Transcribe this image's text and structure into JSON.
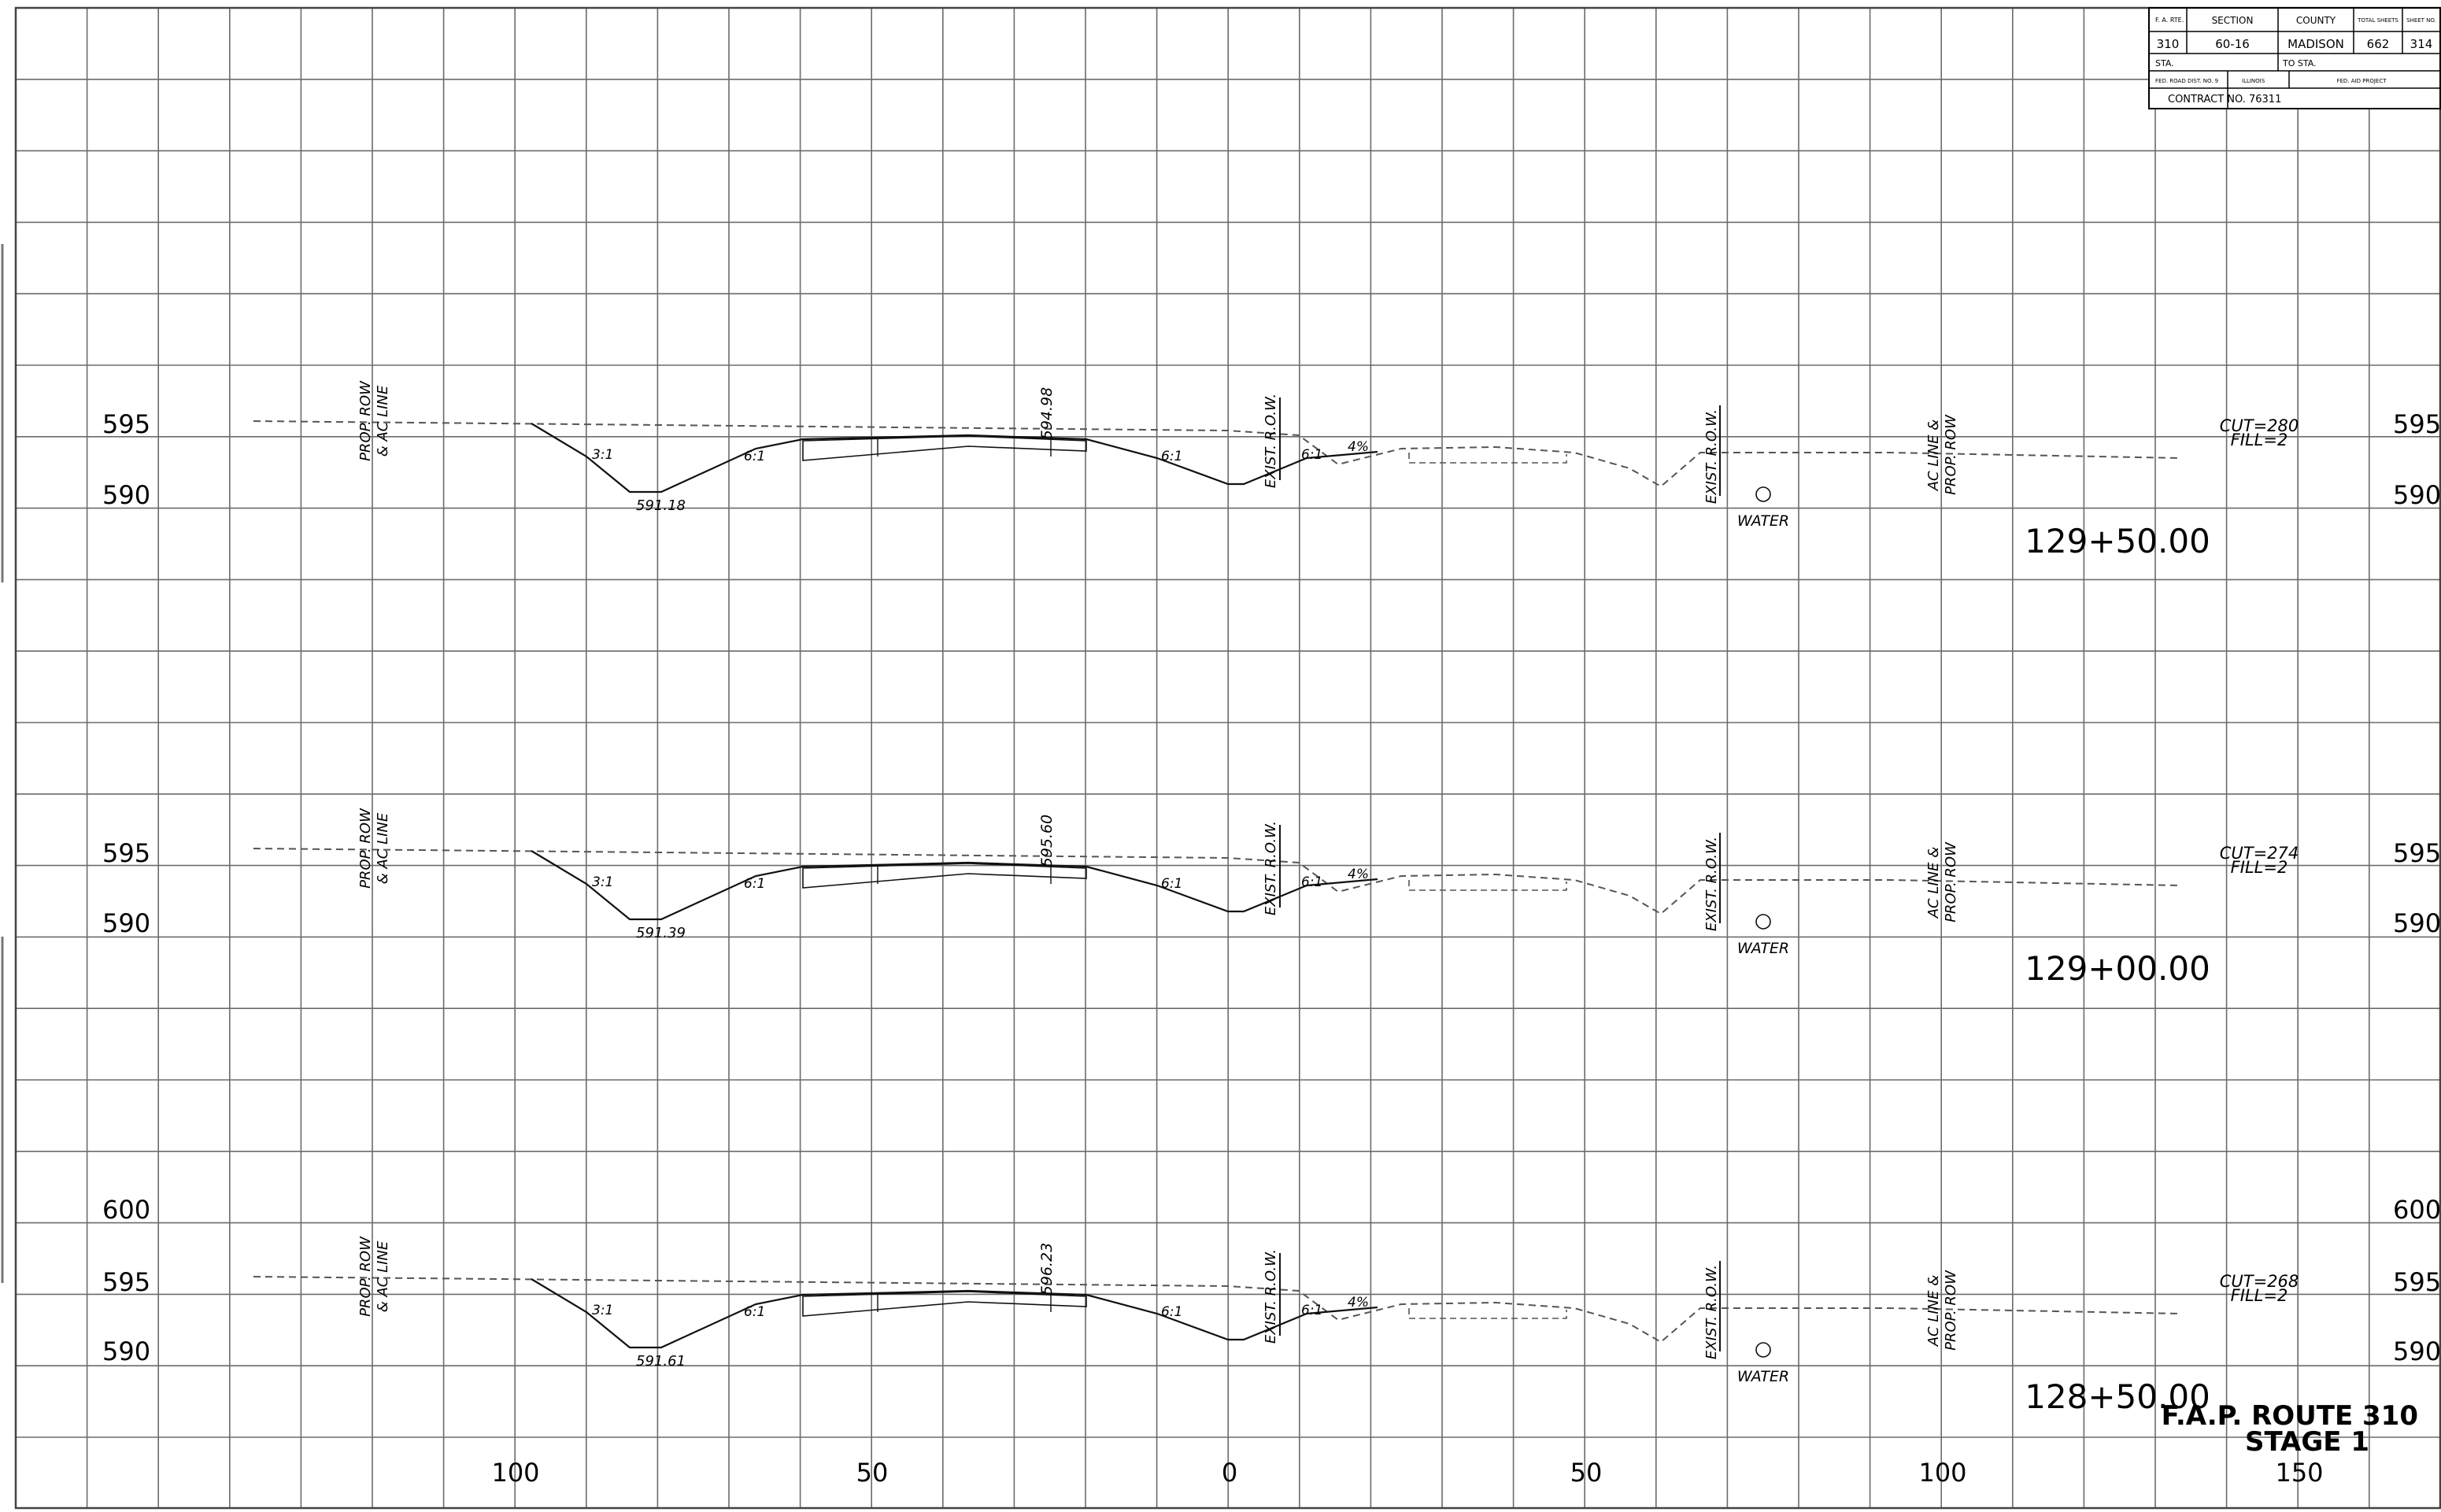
{
  "title_block": {
    "headers": [
      "F. A. RTE.",
      "SECTION",
      "COUNTY",
      "TOTAL SHEETS",
      "SHEET NO."
    ],
    "values": [
      "310",
      "60-16",
      "MADISON",
      "662",
      "314"
    ],
    "sta_label": "STA.",
    "to_sta_label": "TO STA.",
    "fed_road_dist_label": "FED. ROAD DIST. NO. 9",
    "state_label": "ILLINOIS",
    "fed_aid_project_label": "FED. AID PROJECT",
    "contract": "CONTRACT NO. 76311"
  },
  "offset_axis": [
    "100",
    "50",
    "0",
    "50",
    "100",
    "150"
  ],
  "sections": [
    {
      "station": "129+50.00",
      "elev_labels": [
        "595",
        "590"
      ],
      "cut_fill": [
        "CUT=280",
        "FILL=2"
      ],
      "crown_elev": "594.98",
      "ditch_elev": "591.18",
      "slopes": [
        "3:1",
        "6:1",
        "6:1",
        "6:1",
        "4%"
      ],
      "prop_row_label": [
        "PROP. ROW",
        "& AC LINE"
      ],
      "exist_row_label": "EXIST. R.O.W.",
      "ac_line_label": [
        "AC LINE &",
        "PROP. ROW"
      ],
      "water_label": "WATER"
    },
    {
      "station": "129+00.00",
      "elev_labels": [
        "595",
        "590"
      ],
      "cut_fill": [
        "CUT=274",
        "FILL=2"
      ],
      "crown_elev": "595.60",
      "ditch_elev": "591.39",
      "slopes": [
        "3:1",
        "6:1",
        "6:1",
        "6:1",
        "4%"
      ],
      "prop_row_label": [
        "PROP. ROW",
        "& AC LINE"
      ],
      "exist_row_label": "EXIST. R.O.W.",
      "ac_line_label": [
        "AC LINE &",
        "PROP. ROW"
      ],
      "water_label": "WATER"
    },
    {
      "station": "128+50.00",
      "elev_labels": [
        "600",
        "595",
        "590"
      ],
      "cut_fill": [
        "CUT=268",
        "FILL=2"
      ],
      "crown_elev": "596.23",
      "ditch_elev": "591.61",
      "slopes": [
        "3:1",
        "6:1",
        "6:1",
        "6:1",
        "4%"
      ],
      "prop_row_label": [
        "PROP. ROW",
        "& AC LINE"
      ],
      "exist_row_label": "EXIST. R.O.W.",
      "ac_line_label": [
        "AC LINE &",
        "PROP. ROW"
      ],
      "water_label": "WATER"
    }
  ],
  "route": {
    "line1": "F.A.P. ROUTE 310",
    "line2": "STAGE 1"
  }
}
